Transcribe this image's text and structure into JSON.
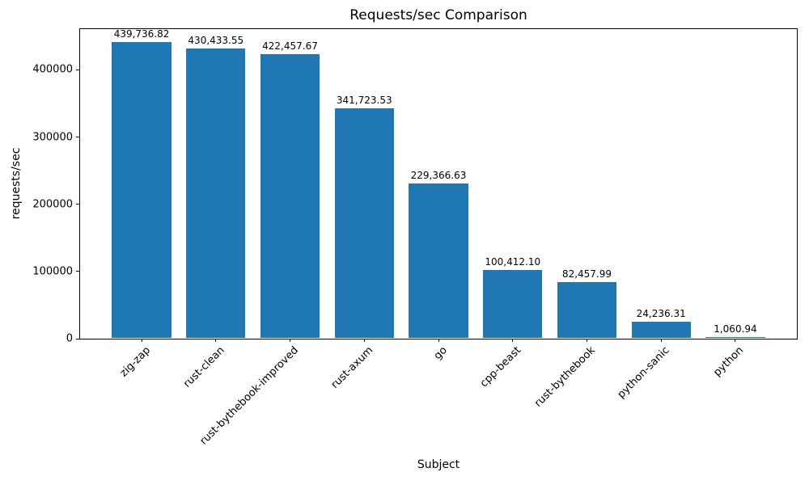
{
  "chart_data": {
    "type": "bar",
    "title": "Requests/sec Comparison",
    "xlabel": "Subject",
    "ylabel": "requests/sec",
    "categories": [
      "zig-zap",
      "rust-clean",
      "rust-bythebook-improved",
      "rust-axum",
      "go",
      "cpp-beast",
      "rust-bythebook",
      "python-sanic",
      "python"
    ],
    "values": [
      439736.82,
      430433.55,
      422457.67,
      341723.53,
      229366.63,
      100412.1,
      82457.99,
      24236.31,
      1060.94
    ],
    "bar_value_labels": [
      "439,736.82",
      "430,433.55",
      "422,457.67",
      "341,723.53",
      "229,366.63",
      "100,412.10",
      "82,457.99",
      "24,236.31",
      "1,060.94"
    ],
    "yticks": [
      0,
      100000,
      200000,
      300000,
      400000
    ],
    "ytick_labels": [
      "0",
      "100000",
      "200000",
      "300000",
      "400000"
    ],
    "ylim": [
      0,
      461723.66
    ],
    "xtick_rotation_deg": 45,
    "grid": false,
    "legend": null,
    "bar_color": "#1f77b4",
    "text_color": "#000000",
    "background_color": "#ffffff"
  }
}
